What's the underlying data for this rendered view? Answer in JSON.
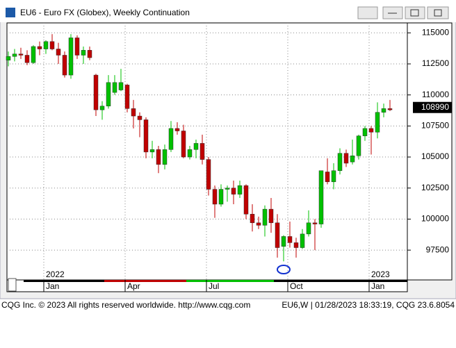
{
  "window_title": "EU6 - Euro FX (Globex), Weekly Continuation",
  "chart_data": {
    "type": "candlestick",
    "categories": [
      null,
      null,
      null,
      null,
      null,
      null,
      "Jan",
      null,
      null,
      null,
      null,
      null,
      null,
      null,
      null,
      null,
      null,
      null,
      null,
      "Apr",
      null,
      null,
      null,
      null,
      null,
      null,
      null,
      null,
      null,
      null,
      null,
      null,
      "Jul",
      null,
      null,
      null,
      null,
      null,
      null,
      null,
      null,
      null,
      null,
      null,
      null,
      "Oct",
      null,
      null,
      null,
      null,
      null,
      null,
      null,
      null,
      null,
      null,
      null,
      null,
      "Jan",
      null,
      null,
      null
    ],
    "year_labels": [
      "2022",
      "2023"
    ],
    "open": [
      112800,
      113100,
      113300,
      113200,
      112600,
      113900,
      113700,
      114300,
      113700,
      113200,
      111600,
      114600,
      113200,
      113600,
      111600,
      108800,
      109100,
      110200,
      110400,
      110800,
      108900,
      108300,
      108000,
      105400,
      105600,
      104400,
      105600,
      107300,
      107100,
      105000,
      105600,
      106100,
      104800,
      102400,
      101200,
      102400,
      102500,
      102000,
      102700,
      100400,
      99700,
      99500,
      100800,
      99700,
      97800,
      98600,
      98100,
      97700,
      98800,
      99700,
      99600,
      103800,
      103000,
      103900,
      105300,
      104600,
      105100,
      106700,
      107300,
      107000,
      108600,
      108900
    ],
    "high": [
      113500,
      113700,
      113800,
      113600,
      114000,
      114300,
      114400,
      114900,
      114200,
      113500,
      114900,
      114800,
      113900,
      113900,
      111700,
      109500,
      111600,
      111600,
      112100,
      110900,
      109600,
      108600,
      108200,
      106300,
      105900,
      106000,
      107900,
      107800,
      107600,
      105900,
      106400,
      106800,
      105000,
      102700,
      102800,
      102700,
      103100,
      103100,
      102800,
      101200,
      100200,
      101100,
      101700,
      100400,
      98700,
      99800,
      98500,
      99200,
      100700,
      100000,
      103900,
      104900,
      104500,
      105700,
      105600,
      106400,
      106800,
      107500,
      107500,
      109400,
      109300,
      109600
    ],
    "low": [
      112300,
      112700,
      112900,
      112400,
      112500,
      113200,
      113300,
      113600,
      112500,
      111400,
      111300,
      112900,
      112500,
      112800,
      108300,
      108000,
      108900,
      110000,
      110300,
      108600,
      107300,
      106600,
      104900,
      104900,
      103700,
      104000,
      105400,
      106800,
      104900,
      104800,
      104900,
      104400,
      101900,
      100100,
      101000,
      101400,
      101200,
      101700,
      100000,
      99000,
      99200,
      98600,
      98900,
      96900,
      96600,
      97700,
      96900,
      97600,
      98600,
      97500,
      99300,
      102800,
      102400,
      103600,
      104200,
      104400,
      104800,
      106300,
      105200,
      106500,
      108200,
      108700
    ],
    "close": [
      113100,
      113300,
      113200,
      112600,
      113900,
      113700,
      114300,
      113700,
      113200,
      111600,
      114600,
      113200,
      113600,
      113000,
      108800,
      109100,
      111000,
      111000,
      111000,
      108900,
      108300,
      108000,
      105400,
      105600,
      104400,
      105600,
      107300,
      107100,
      105000,
      105600,
      106100,
      104800,
      102400,
      101200,
      102400,
      102500,
      102000,
      102700,
      100400,
      99700,
      99500,
      100800,
      99700,
      97700,
      98600,
      98100,
      97700,
      98800,
      99700,
      99600,
      103900,
      103000,
      103900,
      105300,
      104500,
      105100,
      106700,
      107300,
      107000,
      108600,
      108900,
      108800
    ],
    "up_color": "#00c000",
    "down_color": "#c00000",
    "ylim": [
      95100,
      115800
    ],
    "yticks": [
      97500,
      100000,
      102500,
      105000,
      107500,
      110000,
      112500,
      115000
    ],
    "grid": true,
    "last_price": 108990
  },
  "footer_left": "CQG Inc. © 2023 All rights reserved worldwide. http://www.cqg.com",
  "footer_right": "EU6,W | 01/28/2023 18:33:19, CQG 23.6.8054"
}
